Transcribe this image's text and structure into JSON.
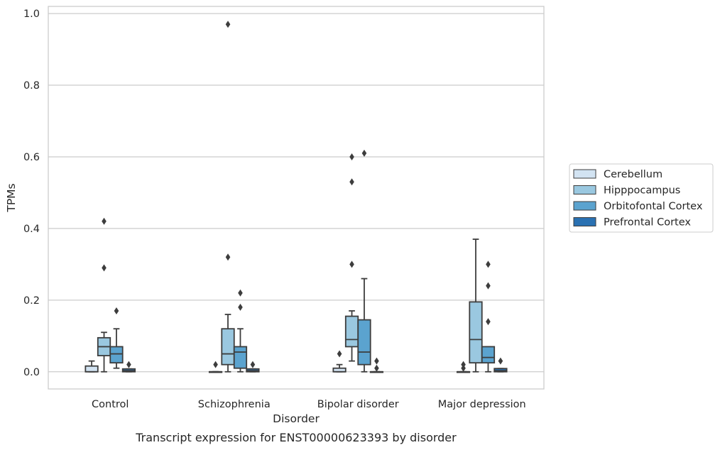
{
  "chart_data": {
    "type": "box",
    "caption": "Transcript expression for ENST00000623393 by disorder",
    "xlabel": "Disorder",
    "ylabel": "TPMs",
    "ylim": [
      -0.048,
      1.02
    ],
    "yticks": [
      0.0,
      0.2,
      0.4,
      0.6,
      0.8,
      1.0
    ],
    "ytick_labels": [
      "0.0",
      "0.2",
      "0.4",
      "0.6",
      "0.8",
      "1.0"
    ],
    "grid": "horizontal",
    "legend_position": "right",
    "categories": [
      "Control",
      "Schizophrenia",
      "Bipolar disorder",
      "Major depression"
    ],
    "series": [
      {
        "name": "Cerebellum",
        "color": "#d2e3f2",
        "boxes": [
          {
            "whisker_low": 0.0,
            "q1": 0.0,
            "median": 0.0,
            "q3": 0.016,
            "whisker_high": 0.03,
            "outliers": []
          },
          {
            "whisker_low": 0.0,
            "q1": 0.0,
            "median": 0.0,
            "q3": 0.0,
            "whisker_high": 0.0,
            "outliers": [
              0.02
            ]
          },
          {
            "whisker_low": 0.0,
            "q1": 0.0,
            "median": 0.0,
            "q3": 0.01,
            "whisker_high": 0.02,
            "outliers": [
              0.05
            ]
          },
          {
            "whisker_low": 0.0,
            "q1": 0.0,
            "median": 0.0,
            "q3": 0.0,
            "whisker_high": 0.0,
            "outliers": [
              0.01,
              0.02
            ]
          }
        ]
      },
      {
        "name": "Hipppocampus",
        "color": "#9ac8e0",
        "boxes": [
          {
            "whisker_low": 0.0,
            "q1": 0.045,
            "median": 0.07,
            "q3": 0.095,
            "whisker_high": 0.11,
            "outliers": [
              0.29,
              0.42
            ]
          },
          {
            "whisker_low": 0.0,
            "q1": 0.02,
            "median": 0.05,
            "q3": 0.12,
            "whisker_high": 0.16,
            "outliers": [
              0.32,
              0.97
            ]
          },
          {
            "whisker_low": 0.03,
            "q1": 0.07,
            "median": 0.09,
            "q3": 0.155,
            "whisker_high": 0.17,
            "outliers": [
              0.3,
              0.53,
              0.6
            ]
          },
          {
            "whisker_low": 0.0,
            "q1": 0.025,
            "median": 0.09,
            "q3": 0.195,
            "whisker_high": 0.37,
            "outliers": []
          }
        ]
      },
      {
        "name": "Orbitofontal Cortex",
        "color": "#5ba3cf",
        "boxes": [
          {
            "whisker_low": 0.01,
            "q1": 0.025,
            "median": 0.05,
            "q3": 0.07,
            "whisker_high": 0.12,
            "outliers": [
              0.17
            ]
          },
          {
            "whisker_low": 0.0,
            "q1": 0.01,
            "median": 0.055,
            "q3": 0.07,
            "whisker_high": 0.12,
            "outliers": [
              0.18,
              0.22
            ]
          },
          {
            "whisker_low": 0.0,
            "q1": 0.02,
            "median": 0.055,
            "q3": 0.145,
            "whisker_high": 0.26,
            "outliers": [
              0.61
            ]
          },
          {
            "whisker_low": 0.0,
            "q1": 0.025,
            "median": 0.04,
            "q3": 0.07,
            "whisker_high": 0.07,
            "outliers": [
              0.14,
              0.24,
              0.3
            ]
          }
        ]
      },
      {
        "name": "Prefrontal Cortex",
        "color": "#2a71b2",
        "boxes": [
          {
            "whisker_low": 0.0,
            "q1": 0.0,
            "median": 0.003,
            "q3": 0.008,
            "whisker_high": 0.008,
            "outliers": [
              0.02
            ]
          },
          {
            "whisker_low": 0.0,
            "q1": 0.0,
            "median": 0.003,
            "q3": 0.008,
            "whisker_high": 0.008,
            "outliers": [
              0.02
            ]
          },
          {
            "whisker_low": 0.0,
            "q1": 0.0,
            "median": 0.0,
            "q3": 0.0,
            "whisker_high": 0.0,
            "outliers": [
              0.01,
              0.03
            ]
          },
          {
            "whisker_low": 0.0,
            "q1": 0.0,
            "median": 0.003,
            "q3": 0.009,
            "whisker_high": 0.009,
            "outliers": [
              0.03
            ]
          }
        ]
      }
    ]
  }
}
